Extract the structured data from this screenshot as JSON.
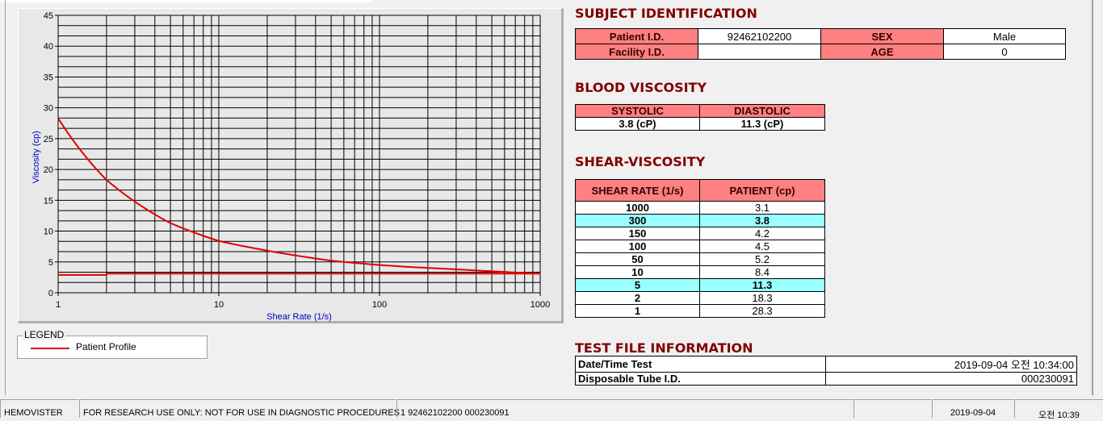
{
  "chart_data": {
    "type": "line",
    "xlabel": "Shear Rate (1/s)",
    "ylabel": "Viscosity (cp)",
    "xscale": "log",
    "xlim": [
      1,
      1000
    ],
    "ylim": [
      0,
      45
    ],
    "xticks": [
      "1",
      "10",
      "100",
      "1000"
    ],
    "yticks": [
      "0",
      "5",
      "10",
      "15",
      "20",
      "25",
      "30",
      "35",
      "40",
      "45"
    ],
    "grid": true,
    "series": [
      {
        "name": "Patient Profile",
        "color": "#e00000",
        "x": [
          1,
          2,
          5,
          10,
          50,
          100,
          150,
          300,
          1000
        ],
        "y": [
          28.3,
          18.3,
          11.3,
          8.4,
          5.2,
          4.5,
          4.2,
          3.8,
          3.1
        ]
      },
      {
        "color": "#e00000",
        "x": [
          1,
          2,
          2,
          1000
        ],
        "y": [
          2.9,
          2.9,
          3.1,
          3.1
        ]
      }
    ]
  },
  "legend": {
    "title": "LEGEND",
    "items": [
      {
        "label": "Patient Profile",
        "color": "#e00000"
      }
    ]
  },
  "subject": {
    "title": "SUBJECT IDENTIFICATION",
    "patient_id_label": "Patient I.D.",
    "patient_id": "92462102200",
    "sex_label": "SEX",
    "sex": "Male",
    "facility_label": "Facility I.D.",
    "facility": "",
    "age_label": "AGE",
    "age": "0"
  },
  "blood": {
    "title": "BLOOD VISCOSITY",
    "systolic_label": "SYSTOLIC",
    "diastolic_label": "DIASTOLIC",
    "systolic": "3.8 (cP)",
    "diastolic": "11.3 (cP)"
  },
  "shear": {
    "title": "SHEAR-VISCOSITY",
    "col1": "SHEAR RATE (1/s)",
    "col2": "PATIENT (cp)",
    "rows": [
      [
        "1000",
        "3.1",
        false
      ],
      [
        "300",
        "3.8",
        true
      ],
      [
        "150",
        "4.2",
        false
      ],
      [
        "100",
        "4.5",
        false
      ],
      [
        "50",
        "5.2",
        false
      ],
      [
        "10",
        "8.4",
        false
      ],
      [
        "5",
        "11.3",
        true
      ],
      [
        "2",
        "18.3",
        false
      ],
      [
        "1",
        "28.3",
        false
      ]
    ]
  },
  "testfile": {
    "title": "TEST FILE INFORMATION",
    "date_label": "Date/Time Test",
    "date": "2019-09-04   오전 10:34:00",
    "tube_label": "Disposable Tube I.D.",
    "tube": "000230091"
  },
  "status": {
    "app": "HEMOVISTER",
    "notice": "FOR RESEARCH USE ONLY: NOT FOR USE IN DIAGNOSTIC PROCEDURES",
    "record": "1  92462102200  000230091",
    "empty": "",
    "date": "2019-09-04",
    "time": "오전 10:39"
  },
  "colors": {
    "header": "#ff8080",
    "highlight": "#99ffff",
    "title": "#800000"
  }
}
